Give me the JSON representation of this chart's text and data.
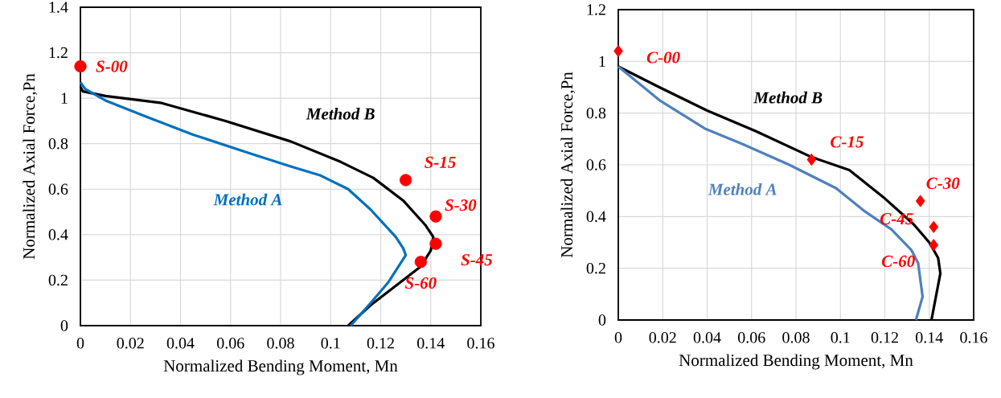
{
  "chart_data": [
    {
      "type": "line",
      "xlabel": "Normalized Bending Moment, Mn",
      "ylabel": "Normalized Axial Force,Pn",
      "xlim": [
        0,
        0.16
      ],
      "ylim": [
        0,
        1.4
      ],
      "xticks": [
        0,
        0.02,
        0.04,
        0.06,
        0.08,
        0.1,
        0.12,
        0.14,
        0.16
      ],
      "yticks": [
        0,
        0.2,
        0.4,
        0.6,
        0.8,
        1,
        1.2,
        1.4
      ],
      "grid": true,
      "series": [
        {
          "name": "Method B",
          "color": "#000000",
          "x": [
            0.107,
            0.116,
            0.136,
            0.14,
            0.141,
            0.138,
            0.129,
            0.117,
            0.104,
            0.084,
            0.058,
            0.032,
            0.01,
            0.001,
            0
          ],
          "values": [
            0,
            0.09,
            0.26,
            0.33,
            0.39,
            0.44,
            0.55,
            0.65,
            0.72,
            0.81,
            0.9,
            0.98,
            1.01,
            1.03,
            1.05
          ]
        },
        {
          "name": "Method A",
          "color": "#0070c0",
          "x": [
            0.108,
            0.116,
            0.123,
            0.13,
            0.129,
            0.126,
            0.116,
            0.107,
            0.096,
            0.084,
            0.067,
            0.045,
            0.026,
            0.01,
            0.002,
            0
          ],
          "values": [
            0,
            0.1,
            0.19,
            0.31,
            0.34,
            0.39,
            0.51,
            0.6,
            0.66,
            0.7,
            0.76,
            0.84,
            0.92,
            0.99,
            1.04,
            1.07
          ]
        },
        {
          "type": "scatter",
          "marker": "circle",
          "color": "#ff0000",
          "x": [
            0,
            0.13,
            0.142,
            0.142,
            0.136
          ],
          "values": [
            1.14,
            0.64,
            0.48,
            0.36,
            0.28
          ]
        }
      ],
      "annotations": [
        {
          "text": "S-00",
          "x": 0,
          "y": 1.14
        },
        {
          "text": "S-15",
          "x": 0.13,
          "y": 0.64
        },
        {
          "text": "S-30",
          "x": 0.142,
          "y": 0.48
        },
        {
          "text": "S-45",
          "x": 0.142,
          "y": 0.36
        },
        {
          "text": "S-60",
          "x": 0.136,
          "y": 0.28
        }
      ]
    },
    {
      "type": "line",
      "xlabel": "Normalized Bending Moment, Mn",
      "ylabel": "Normalized Axial Force,Pn",
      "xlim": [
        0,
        0.16
      ],
      "ylim": [
        0,
        1.2
      ],
      "xticks": [
        0,
        0.02,
        0.04,
        0.06,
        0.08,
        0.1,
        0.12,
        0.14,
        0.16
      ],
      "yticks": [
        0,
        0.2,
        0.4,
        0.6,
        0.8,
        1,
        1.2
      ],
      "grid": true,
      "series": [
        {
          "name": "Method B",
          "color": "#000000",
          "x": [
            0,
            0.0185,
            0.04,
            0.062,
            0.087,
            0.104,
            0.12,
            0.133,
            0.14,
            0.144,
            0.145,
            0.143,
            0.141
          ],
          "values": [
            0.98,
            0.9,
            0.81,
            0.73,
            0.63,
            0.58,
            0.47,
            0.37,
            0.3,
            0.24,
            0.18,
            0.09,
            0
          ]
        },
        {
          "name": "Method A",
          "color": "#4f81bd",
          "x": [
            0,
            0.0185,
            0.039,
            0.056,
            0.077,
            0.098,
            0.111,
            0.123,
            0.132,
            0.135,
            0.137,
            0.134
          ],
          "values": [
            0.98,
            0.85,
            0.74,
            0.68,
            0.6,
            0.51,
            0.42,
            0.35,
            0.27,
            0.22,
            0.09,
            0
          ]
        },
        {
          "type": "scatter",
          "marker": "diamond",
          "color": "#ff0000",
          "x": [
            0,
            0.087,
            0.136,
            0.142,
            0.142
          ],
          "values": [
            1.04,
            0.62,
            0.46,
            0.36,
            0.29
          ]
        }
      ],
      "annotations": [
        {
          "text": "C-00",
          "x": 0,
          "y": 1.04
        },
        {
          "text": "C-15",
          "x": 0.087,
          "y": 0.62
        },
        {
          "text": "C-30",
          "x": 0.136,
          "y": 0.46
        },
        {
          "text": "C-45",
          "x": 0.142,
          "y": 0.36
        },
        {
          "text": "C-60",
          "x": 0.142,
          "y": 0.29
        }
      ]
    }
  ]
}
